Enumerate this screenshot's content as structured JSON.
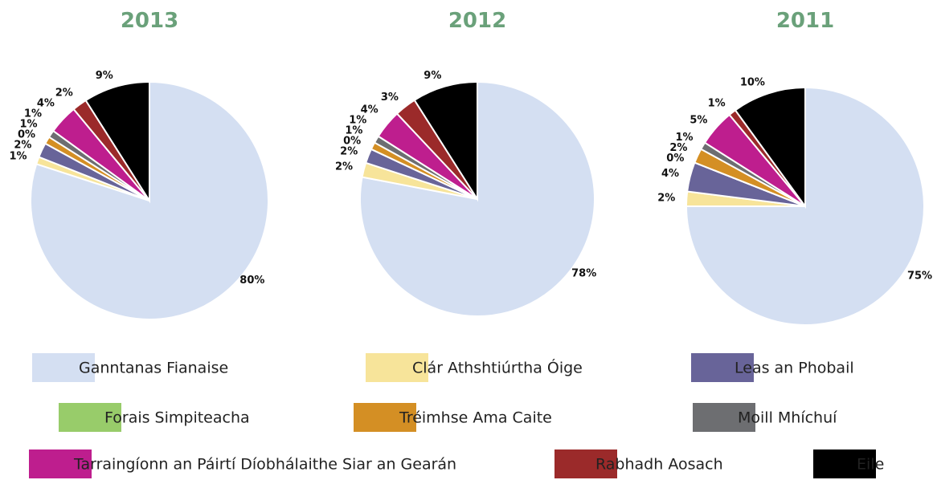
{
  "chart_data": [
    {
      "type": "pie",
      "title": "2013",
      "values": [
        80,
        1,
        2,
        0,
        1,
        1,
        4,
        2,
        9
      ],
      "value_labels": [
        "80%",
        "1%",
        "2%",
        "0%",
        "1%",
        "1%",
        "4%",
        "2%",
        "9%"
      ]
    },
    {
      "type": "pie",
      "title": "2012",
      "values": [
        78,
        2,
        2,
        0,
        1,
        1,
        4,
        3,
        9
      ],
      "value_labels": [
        "78%",
        "2%",
        "2%",
        "0%",
        "1%",
        "1%",
        "4%",
        "3%",
        "9%"
      ]
    },
    {
      "type": "pie",
      "title": "2011",
      "values": [
        75,
        2,
        4,
        0,
        2,
        1,
        5,
        1,
        10
      ],
      "value_labels": [
        "75%",
        "2%",
        "4%",
        "0%",
        "2%",
        "1%",
        "5%",
        "1%",
        "10%"
      ]
    }
  ],
  "legend": {
    "categories": [
      "Ganntanas Fianaise",
      "Clár Athshtiúrtha Óige",
      "Leas an Phobail",
      "Forais Simpiteacha",
      "Tréimhse Ama Caite",
      "Moill Mhíchuí",
      "Tarraingíonn an Páirtí Díobhálaithe Siar an Gearán",
      "Rabhadh Aosach",
      "Eile"
    ],
    "colors": [
      "#d4dff2",
      "#f7e49a",
      "#686499",
      "#98cc6a",
      "#d48f24",
      "#6d6e71",
      "#be1e8e",
      "#9b2a2a",
      "#000000"
    ]
  }
}
